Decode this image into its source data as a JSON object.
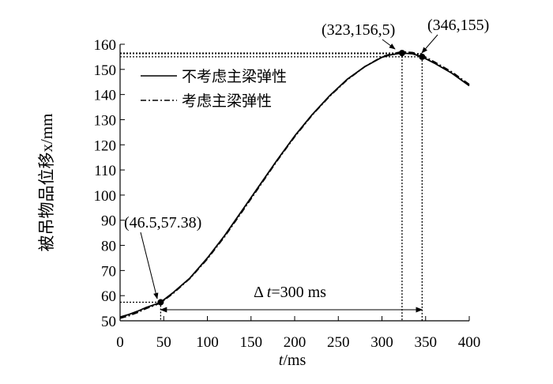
{
  "chart_data": {
    "type": "line",
    "xlabel_var": "t",
    "xlabel_unit": "/ms",
    "ylabel": "被吊物品位移x/mm",
    "xlim": [
      0,
      400
    ],
    "ylim": [
      50,
      160
    ],
    "xticks": [
      0,
      50,
      100,
      150,
      200,
      250,
      300,
      350,
      400
    ],
    "yticks": [
      50,
      60,
      70,
      80,
      90,
      100,
      110,
      120,
      130,
      140,
      150,
      160
    ],
    "series": [
      {
        "name": "不考虑主梁弹性",
        "style": "solid",
        "x": [
          0,
          10,
          20,
          30,
          40,
          46.5,
          60,
          80,
          100,
          120,
          140,
          160,
          180,
          200,
          220,
          240,
          260,
          280,
          300,
          310,
          323,
          335,
          346,
          360,
          380,
          400
        ],
        "y": [
          51.5,
          52.5,
          53.8,
          55.3,
          56.5,
          57.4,
          61,
          67,
          75,
          84,
          94,
          104,
          114,
          123.5,
          132,
          139.5,
          146,
          151,
          154.8,
          155.8,
          156.5,
          156.2,
          155,
          152.5,
          148.5,
          143.5
        ]
      },
      {
        "name": "考虑主梁弹性",
        "style": "dashdot",
        "x": [
          0,
          10,
          20,
          30,
          40,
          46.5,
          60,
          80,
          100,
          120,
          140,
          160,
          180,
          200,
          220,
          240,
          260,
          280,
          300,
          310,
          323,
          335,
          346,
          360,
          380,
          400
        ],
        "y": [
          51,
          52,
          53.3,
          54.9,
          56.2,
          57.2,
          60.7,
          66.8,
          74.6,
          83.6,
          93.5,
          103.6,
          113.7,
          123.2,
          131.8,
          139.3,
          145.8,
          151,
          155,
          156.1,
          157,
          156.7,
          155.6,
          153,
          149,
          144
        ]
      }
    ],
    "key_points": [
      {
        "x": 46.5,
        "y": 57.38,
        "label": "(46.5,57.38)"
      },
      {
        "x": 323,
        "y": 156.5,
        "label": "(323,156,5)"
      },
      {
        "x": 346,
        "y": 155,
        "label": "(346,155)"
      }
    ],
    "interval": {
      "from": 46.5,
      "to": 346,
      "label_prefix": "Δ ",
      "label_var": "t",
      "label_value": "=300 ms"
    }
  }
}
